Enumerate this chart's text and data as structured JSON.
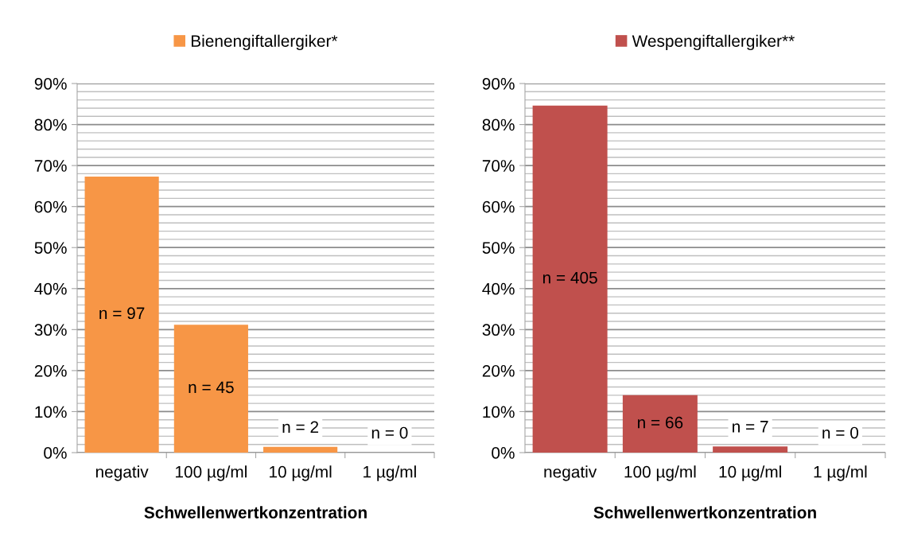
{
  "chart_data": [
    {
      "type": "bar",
      "categories": [
        "negativ",
        "100 µg/ml",
        "10 µg/ml",
        "1 µg/ml"
      ],
      "xlabel": "Schwellenwertkonzentration",
      "series": [
        {
          "name": "Bienengiftallergiker*",
          "color": "#f79646",
          "values": [
            67.3,
            31.2,
            1.4,
            0
          ]
        }
      ],
      "annotations": [
        "n = 97",
        "n = 45",
        "n = 2",
        "n = 0"
      ],
      "ylim": [
        0,
        90
      ],
      "yticks": [
        {
          "value": 0,
          "label": "0%"
        },
        {
          "value": 10,
          "label": "10%"
        },
        {
          "value": 20,
          "label": "20%"
        },
        {
          "value": 30,
          "label": "30%"
        },
        {
          "value": 40,
          "label": "40%"
        },
        {
          "value": 50,
          "label": "50%"
        },
        {
          "value": 60,
          "label": "60%"
        },
        {
          "value": 70,
          "label": "70%"
        },
        {
          "value": 80,
          "label": "80%"
        },
        {
          "value": 90,
          "label": "90%"
        }
      ],
      "grid": "y",
      "legend": "top"
    },
    {
      "type": "bar",
      "categories": [
        "negativ",
        "100 µg/ml",
        "10 µg/ml",
        "1 µg/ml"
      ],
      "xlabel": "Schwellenwertkonzentration",
      "series": [
        {
          "name": "Wespengiftallergiker**",
          "color": "#c0504d",
          "values": [
            84.6,
            14.0,
            1.5,
            0
          ]
        }
      ],
      "annotations": [
        "n = 405",
        "n = 66",
        "n = 7",
        "n = 0"
      ],
      "ylim": [
        0,
        90
      ],
      "yticks": [
        {
          "value": 0,
          "label": "0%"
        },
        {
          "value": 10,
          "label": "10%"
        },
        {
          "value": 20,
          "label": "20%"
        },
        {
          "value": 30,
          "label": "30%"
        },
        {
          "value": 40,
          "label": "40%"
        },
        {
          "value": 50,
          "label": "50%"
        },
        {
          "value": 60,
          "label": "60%"
        },
        {
          "value": 70,
          "label": "70%"
        },
        {
          "value": 80,
          "label": "80%"
        },
        {
          "value": 90,
          "label": "90%"
        }
      ],
      "grid": "y",
      "legend": "top"
    }
  ]
}
